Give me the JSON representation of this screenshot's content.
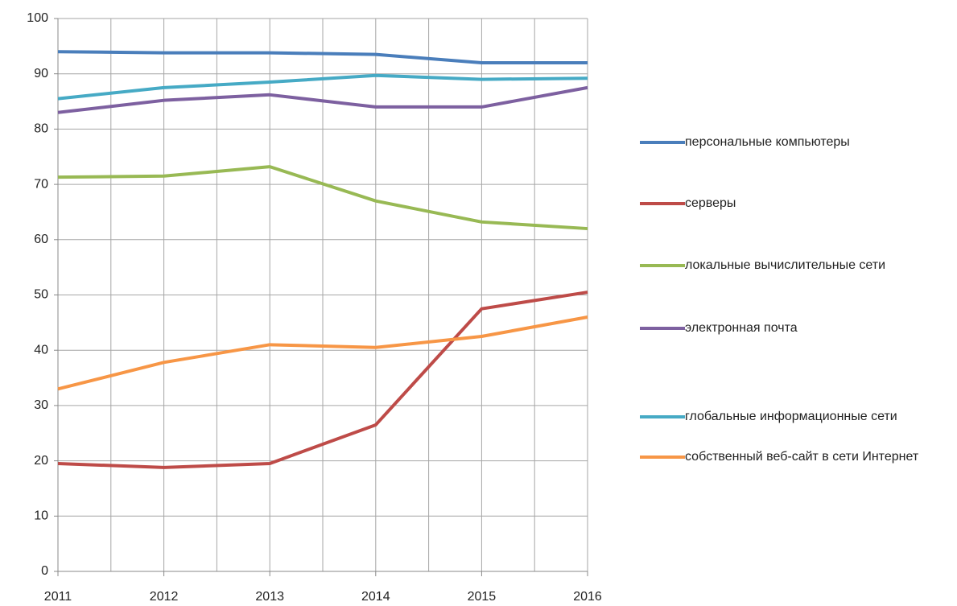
{
  "chart_data": {
    "type": "line",
    "x": [
      2011,
      2012,
      2013,
      2014,
      2015,
      2016
    ],
    "xlim": [
      2011,
      2016
    ],
    "xticks": [
      2011,
      2012,
      2013,
      2014,
      2015,
      2016
    ],
    "ylim": [
      0,
      100
    ],
    "yticks": [
      0,
      10,
      20,
      30,
      40,
      50,
      60,
      70,
      80,
      90,
      100
    ],
    "grid": true,
    "legend": "right",
    "series": [
      {
        "name": "персональные компьютеры",
        "color": "#4a7ebb",
        "values": [
          94,
          93.8,
          93.8,
          93.5,
          92,
          92
        ]
      },
      {
        "name": "серверы",
        "color": "#be4b48",
        "values": [
          19.5,
          18.8,
          19.5,
          26.5,
          47.5,
          50.5
        ]
      },
      {
        "name": "локальные вычислительные сети",
        "color": "#98b954",
        "values": [
          71.3,
          71.5,
          73.2,
          67,
          63.2,
          62
        ]
      },
      {
        "name": "электронная почта",
        "color": "#7d60a0",
        "values": [
          83,
          85.2,
          86.2,
          84,
          84,
          87.5
        ]
      },
      {
        "name": "глобальные информационные сети",
        "color": "#46aac5",
        "values": [
          85.5,
          87.5,
          88.5,
          89.7,
          89,
          89.2
        ]
      },
      {
        "name": "собственный веб-сайт в сети Интернет",
        "color": "#f79646",
        "values": [
          33,
          37.8,
          41,
          40.5,
          42.5,
          46
        ]
      }
    ]
  }
}
